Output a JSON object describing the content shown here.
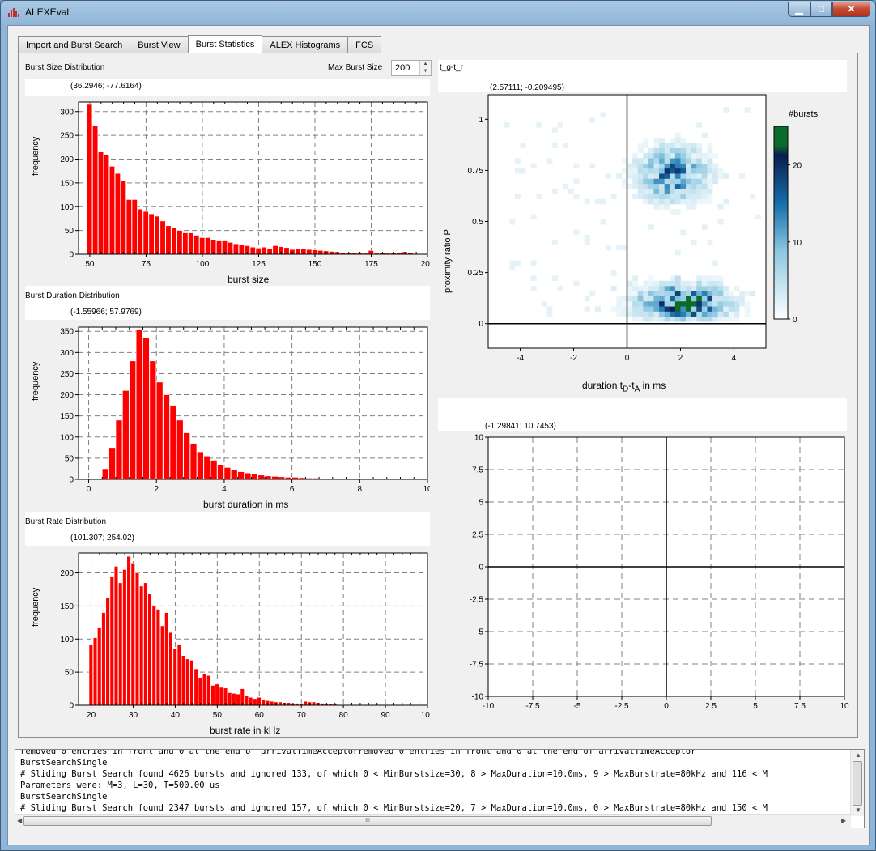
{
  "window": {
    "title": "ALEXEval",
    "min_label": "▁",
    "max_label": "□",
    "close_label": "✕"
  },
  "tabs": [
    {
      "label": "Import and Burst Search",
      "active": false
    },
    {
      "label": "Burst View",
      "active": false
    },
    {
      "label": "Burst Statistics",
      "active": true
    },
    {
      "label": "ALEX Histograms",
      "active": false
    },
    {
      "label": "FCS",
      "active": false
    }
  ],
  "controls": {
    "max_burst_size_label": "Max Burst Size",
    "max_burst_size_value": "200"
  },
  "plots": {
    "size": {
      "title": "Burst Size Distribution",
      "coord": "(36.2946; -77.6164)",
      "ylabel": "frequency",
      "xlabel": "burst size"
    },
    "duration": {
      "title": "Burst Duration Distribution",
      "coord": "(-1.55966; 57.9769)",
      "ylabel": "frequency",
      "xlabel": "burst duration in ms"
    },
    "rate": {
      "title": "Burst Rate Distribution",
      "coord": "(101.307; 254.02)",
      "ylabel": "frequency",
      "xlabel": "burst rate in kHz"
    },
    "heatmap": {
      "title": "t_g-t_r",
      "coord": "(2.57111; -0.209495)",
      "ylabel": "proximity ratio P",
      "xlabel_main": "duration t",
      "xlabel_sub1": "D",
      "xlabel_mid": "-t",
      "xlabel_sub2": "A",
      "xlabel_tail": " in ms",
      "colorbar_title": "#bursts"
    },
    "empty": {
      "title": "",
      "coord": "(-1.29841; 10.7453)"
    }
  },
  "chart_data": [
    {
      "type": "bar",
      "title": "Burst Size Distribution",
      "xlabel": "burst size",
      "ylabel": "frequency",
      "xlim": [
        45,
        200
      ],
      "ylim": [
        0,
        320
      ],
      "xticks": [
        50,
        75,
        100,
        125,
        150,
        175,
        200
      ],
      "yticks": [
        0,
        50,
        100,
        150,
        200,
        250,
        300
      ],
      "x": [
        50,
        52.5,
        55,
        57.5,
        60,
        62.5,
        65,
        67.5,
        70,
        72.5,
        75,
        77.5,
        80,
        82.5,
        85,
        87.5,
        90,
        92.5,
        95,
        97.5,
        100,
        102.5,
        105,
        107.5,
        110,
        112.5,
        115,
        117.5,
        120,
        122.5,
        125,
        127.5,
        130,
        132.5,
        135,
        137.5,
        140,
        142.5,
        145,
        147.5,
        150,
        152.5,
        155,
        157.5,
        160,
        162.5,
        165,
        167.5,
        170,
        172.5,
        175,
        177.5,
        180,
        182.5,
        185,
        187.5,
        190,
        192.5,
        195
      ],
      "bin_width": 2.5,
      "values": [
        315,
        270,
        215,
        210,
        185,
        170,
        155,
        115,
        115,
        95,
        90,
        85,
        80,
        70,
        60,
        55,
        50,
        45,
        45,
        40,
        35,
        35,
        30,
        28,
        28,
        25,
        22,
        20,
        18,
        15,
        13,
        15,
        12,
        18,
        16,
        14,
        10,
        11,
        11,
        10,
        9,
        8,
        7,
        6,
        5,
        4,
        3,
        3,
        3,
        2,
        8,
        2,
        3,
        2,
        3,
        4,
        5,
        3,
        1
      ]
    },
    {
      "type": "bar",
      "title": "Burst Duration Distribution",
      "xlabel": "burst duration in ms",
      "ylabel": "frequency",
      "xlim": [
        -0.3,
        10
      ],
      "ylim": [
        0,
        360
      ],
      "xticks": [
        0,
        2,
        4,
        6,
        8,
        10
      ],
      "yticks": [
        0,
        50,
        100,
        150,
        200,
        250,
        300,
        350
      ],
      "x": [
        0.5,
        0.7,
        0.9,
        1.1,
        1.3,
        1.5,
        1.7,
        1.9,
        2.1,
        2.3,
        2.5,
        2.7,
        2.9,
        3.1,
        3.3,
        3.5,
        3.7,
        3.9,
        4.1,
        4.3,
        4.5,
        4.7,
        4.9,
        5.1,
        5.3,
        5.5,
        5.7,
        5.9,
        6.1,
        6.3,
        6.5,
        6.7,
        6.9,
        7.1,
        7.3,
        7.5,
        7.7,
        7.9,
        8.1
      ],
      "bin_width": 0.2,
      "values": [
        25,
        75,
        140,
        210,
        280,
        355,
        335,
        280,
        230,
        200,
        175,
        140,
        110,
        85,
        65,
        55,
        45,
        35,
        28,
        22,
        18,
        15,
        12,
        10,
        8,
        7,
        6,
        5,
        5,
        4,
        3,
        3,
        2,
        2,
        2,
        1,
        1,
        1,
        1
      ]
    },
    {
      "type": "bar",
      "title": "Burst Rate Distribution",
      "xlabel": "burst rate in kHz",
      "ylabel": "frequency",
      "xlim": [
        17,
        100
      ],
      "ylim": [
        0,
        230
      ],
      "xticks": [
        20,
        30,
        40,
        50,
        60,
        70,
        80,
        90,
        100
      ],
      "yticks": [
        0,
        50,
        100,
        150,
        200
      ],
      "x": [
        20,
        21,
        22,
        23,
        24,
        25,
        26,
        27,
        28,
        29,
        30,
        31,
        32,
        33,
        34,
        35,
        36,
        37,
        38,
        39,
        40,
        41,
        42,
        43,
        44,
        45,
        46,
        47,
        48,
        49,
        50,
        51,
        52,
        53,
        54,
        55,
        56,
        57,
        58,
        59,
        60,
        61,
        62,
        63,
        64,
        65,
        66,
        67,
        68,
        69,
        70,
        71,
        72,
        73,
        74,
        75,
        76,
        77,
        78,
        79,
        80,
        81,
        82,
        83,
        84,
        85,
        86,
        87,
        88,
        89,
        90
      ],
      "bin_width": 1,
      "values": [
        92,
        102,
        118,
        140,
        162,
        195,
        210,
        185,
        205,
        225,
        215,
        200,
        180,
        185,
        168,
        150,
        145,
        120,
        140,
        110,
        85,
        92,
        75,
        70,
        68,
        55,
        42,
        48,
        45,
        30,
        32,
        27,
        26,
        19,
        18,
        17,
        25,
        15,
        12,
        10,
        12,
        8,
        7,
        6,
        5,
        5,
        4,
        4,
        3,
        3,
        3,
        6,
        5,
        5,
        4,
        3,
        2,
        2,
        2,
        1,
        1,
        1,
        1,
        1,
        1,
        1,
        1,
        1,
        1,
        1,
        1
      ]
    },
    {
      "type": "heatmap",
      "title": "t_g-t_r",
      "xlabel": "duration tD-tA in ms",
      "ylabel": "proximity ratio P",
      "xlim": [
        -5.2,
        5.2
      ],
      "ylim": [
        -0.12,
        1.12
      ],
      "xticks": [
        -4,
        -2,
        0,
        2,
        4
      ],
      "yticks": [
        0,
        0.25,
        0.5,
        0.75,
        1
      ],
      "colorbar": {
        "label": "#bursts",
        "range": [
          0,
          25
        ],
        "ticks": [
          0,
          10,
          20
        ]
      },
      "clusters": [
        {
          "center": [
            1.6,
            0.72
          ],
          "spread": [
            1.2,
            0.12
          ],
          "peak": 15
        },
        {
          "center": [
            2.0,
            0.09
          ],
          "spread": [
            1.5,
            0.08
          ],
          "peak": 22
        }
      ]
    },
    {
      "type": "scatter",
      "title": "",
      "xlim": [
        -10,
        10
      ],
      "ylim": [
        -10,
        10
      ],
      "xticks": [
        -10,
        -7.5,
        -5,
        -2.5,
        0,
        2.5,
        5,
        7.5,
        10
      ],
      "yticks": [
        -10,
        -7.5,
        -5,
        -2.5,
        0,
        2.5,
        5,
        7.5,
        10
      ],
      "x": [],
      "y": []
    }
  ],
  "log": {
    "lines": [
      "removed 0 entries in front and 0 at the end of arrivalTimeAcceptorremoved 0 entries in front and 0 at the end of arrivalTimeAcceptor",
      "BurstSearchSingle",
      "# Sliding Burst Search found 4626 bursts and ignored 133, of which 0 < MinBurstsize=30, 8 > MaxDuration=10.0ms, 9 > MaxBurstrate=80kHz and 116 < M",
      "Parameters were: M=3, L=30, T=500.00 us",
      "BurstSearchSingle",
      "# Sliding Burst Search found 2347 bursts and ignored 157, of which 0 < MinBurstsize=20, 7 > MaxDuration=10.0ms, 0 > MaxBurstrate=80kHz and 150 < M",
      "Parameters were: M=3, L=20, T=500.00 us"
    ],
    "scroll_grip": "III"
  },
  "colors": {
    "bar": "#ff0000",
    "bar_edge": "#b00000",
    "grid": "#808080",
    "heat_low": "#ffffff",
    "heat_mid": "#1f78b4",
    "heat_high": "#0a2050",
    "heat_top": "#006400"
  }
}
